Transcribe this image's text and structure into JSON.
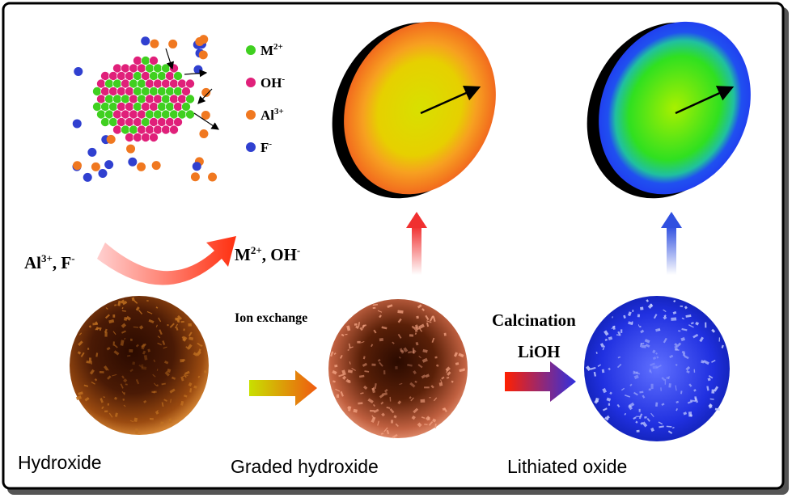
{
  "legend": [
    {
      "base": "M",
      "sup": "2+"
    },
    {
      "base": "OH",
      "sup": "-"
    },
    {
      "base": "Al",
      "sup": "3+"
    },
    {
      "base": "F",
      "sup": "-"
    }
  ],
  "inputs": {
    "a": {
      "base": "Al",
      "sup": "3+"
    },
    "sep": ", ",
    "b": {
      "base": "F",
      "sup": "-"
    }
  },
  "outputs": {
    "a": {
      "base": "M",
      "sup": "2+"
    },
    "sep": ", ",
    "b": {
      "base": "OH",
      "sup": "-"
    }
  },
  "step1": "Ion exchange",
  "step2": [
    "Calcination",
    "LiOH"
  ],
  "stages": [
    "Hydroxide",
    "Graded hydroxide",
    "Lithiated oxide"
  ]
}
